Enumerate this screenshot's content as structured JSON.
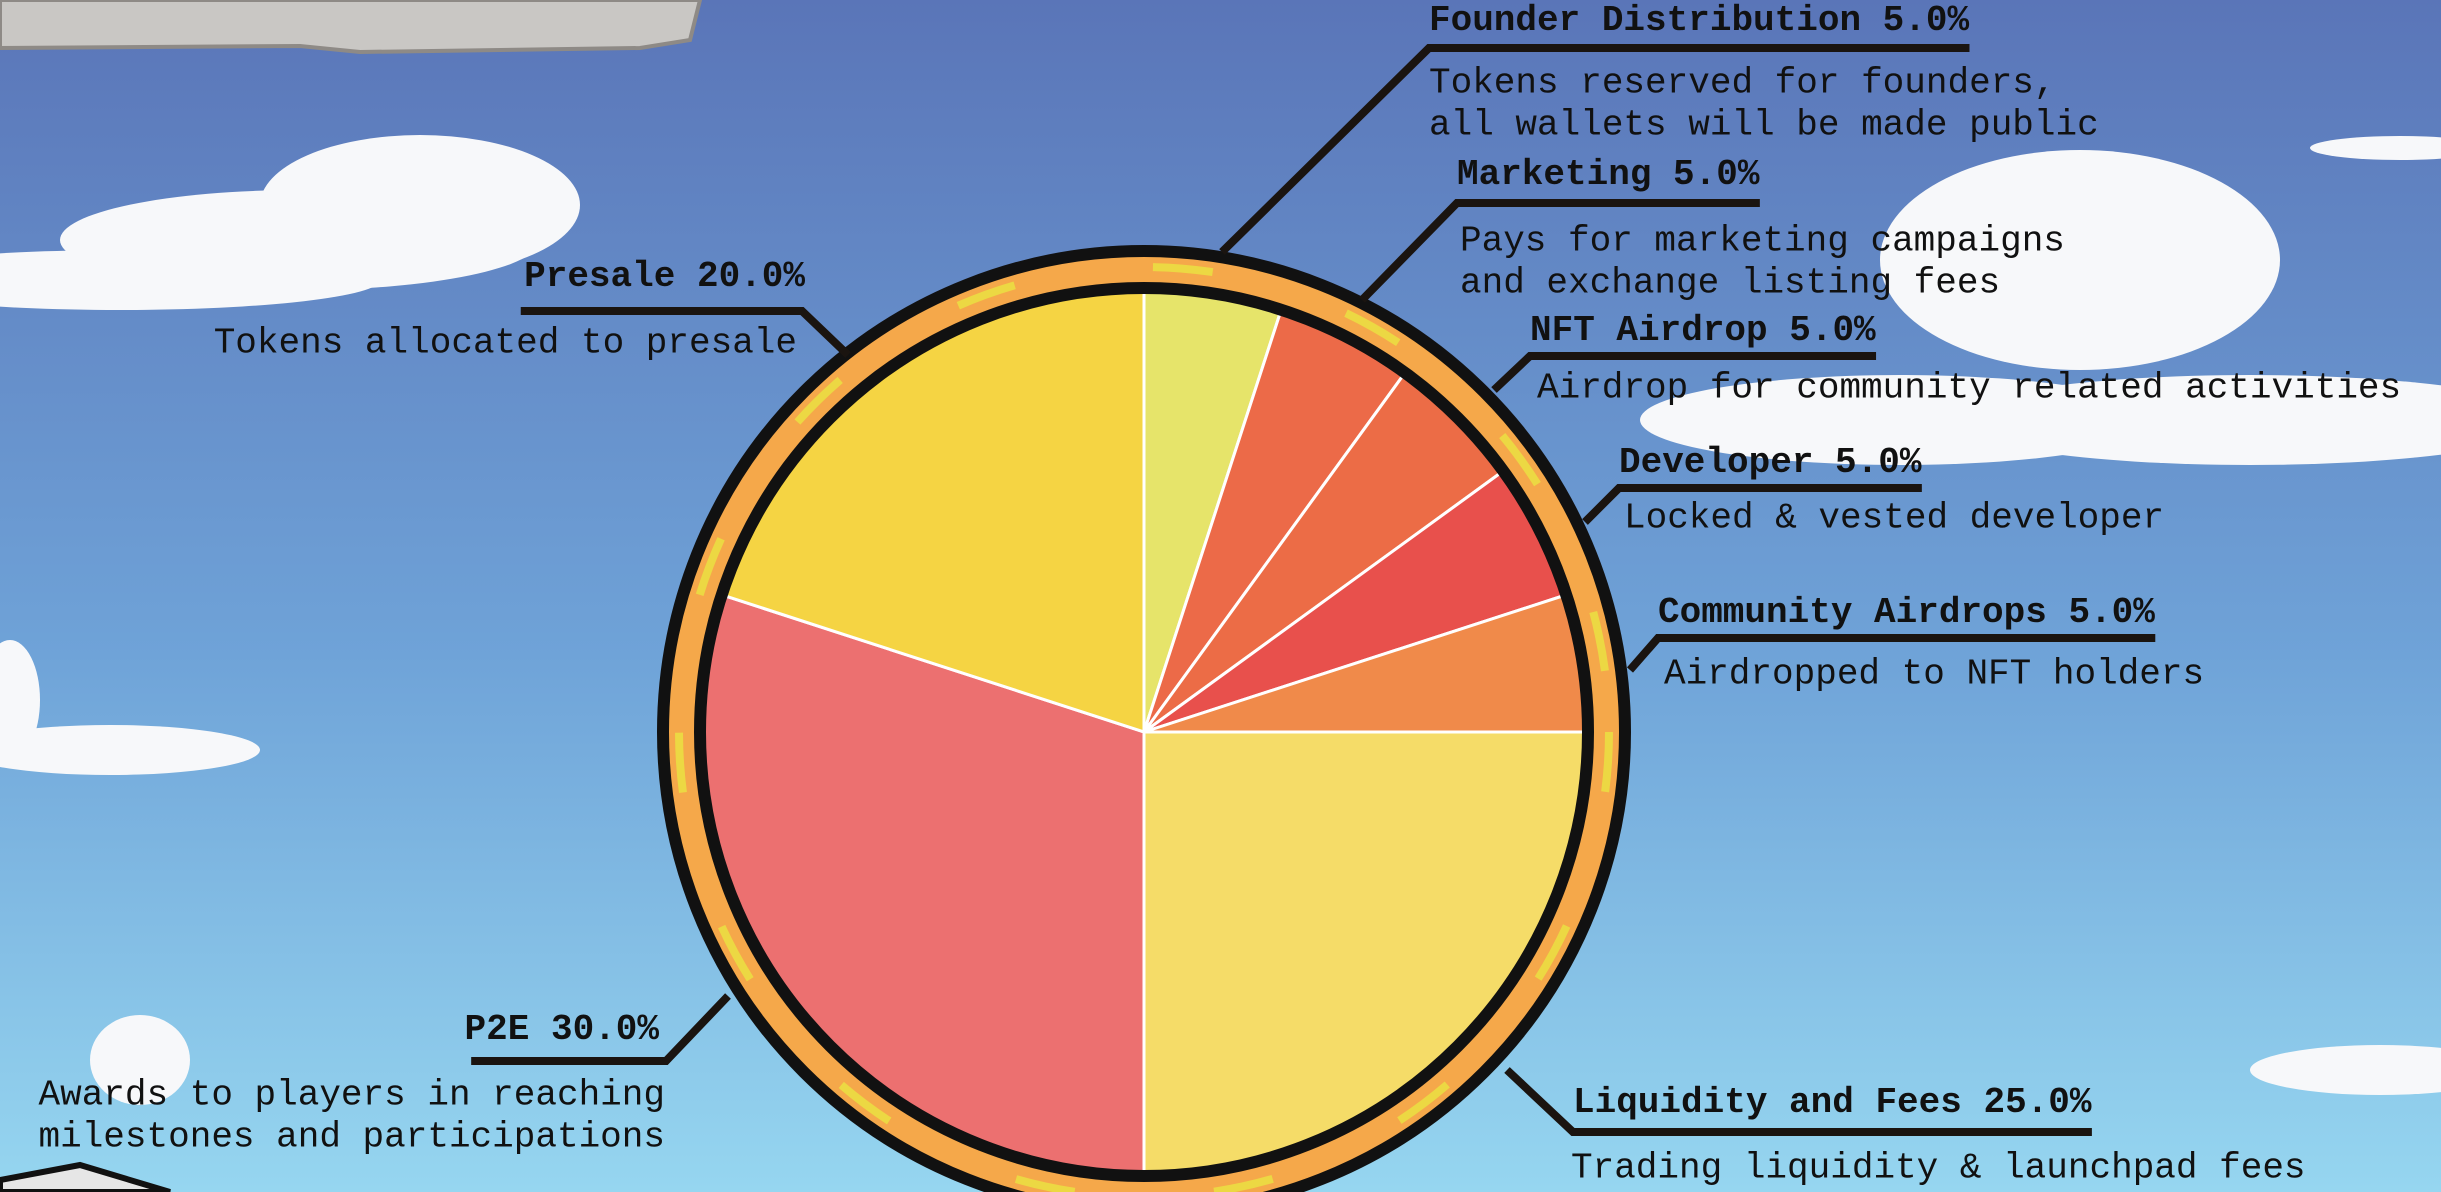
{
  "chart_data": {
    "type": "pie",
    "categories": [
      "Founder Distribution",
      "Marketing",
      "NFT Airdrop",
      "Developer",
      "Community Airdrops",
      "Liquidity and Fees",
      "P2E",
      "Presale"
    ],
    "values": [
      5,
      5,
      5,
      5,
      5,
      25,
      30,
      20
    ],
    "value_labels": [
      "5.0%",
      "5.0%",
      "5.0%",
      "5.0%",
      "5.0%",
      "25.0%",
      "30.0%",
      "20.0%"
    ],
    "colors": [
      "#e6e46a",
      "#ec6a48",
      "#ec6c46",
      "#e8504c",
      "#f08a4a",
      "#f5dc68",
      "#ec7070",
      "#f5d443"
    ],
    "descriptions": [
      [
        "Tokens reserved for founders,",
        "all wallets will be made public"
      ],
      [
        "Pays for marketing campaigns",
        "and exchange listing fees"
      ],
      [
        "Airdrop for community related activities"
      ],
      [
        "Locked & vested developer"
      ],
      [
        "Airdropped to NFT holders"
      ],
      [
        "Trading liquidity & launchpad fees"
      ],
      [
        "Awards to players in reaching",
        "milestones and participations"
      ],
      [
        "Tokens allocated to presale"
      ]
    ]
  }
}
